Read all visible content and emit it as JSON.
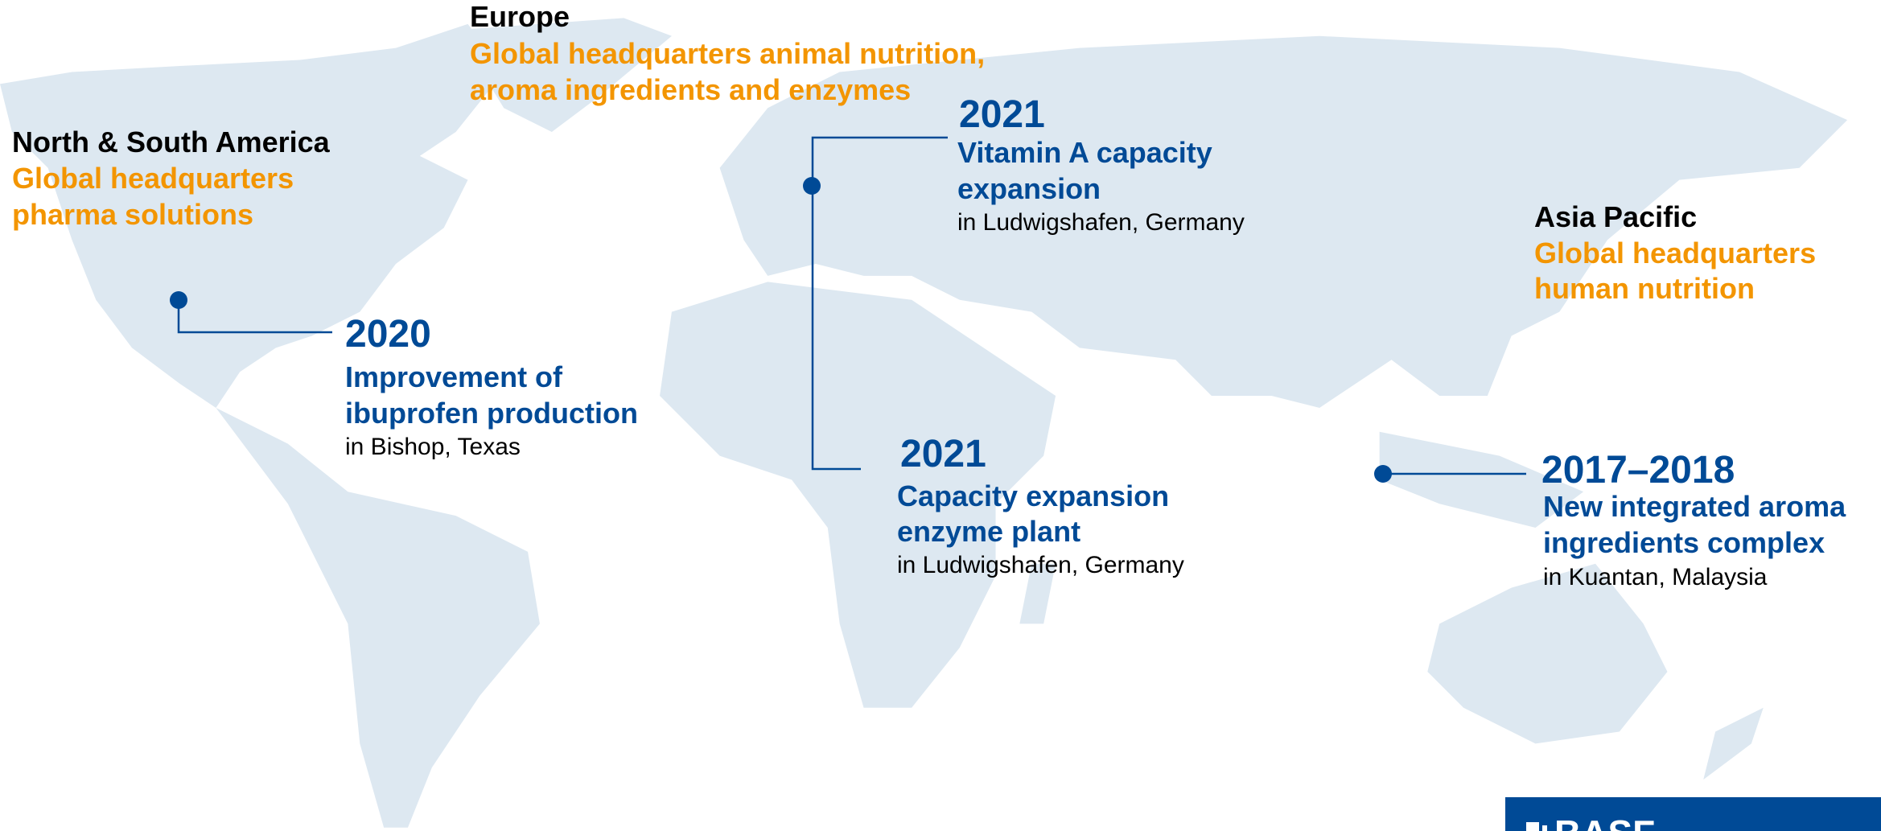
{
  "regions": [
    {
      "name": "Europe",
      "headquarters": [
        "Global headquarters animal nutrition,",
        "aroma ingredients and enzymes"
      ]
    },
    {
      "name": "North & South America",
      "headquarters": [
        "Global headquarters",
        "pharma solutions"
      ]
    },
    {
      "name": "Asia Pacific",
      "headquarters": [
        "Global headquarters",
        "human nutrition"
      ]
    }
  ],
  "milestones": [
    {
      "year": "2020",
      "title": [
        "Improvement of",
        "ibuprofen production"
      ],
      "location": "in Bishop, Texas"
    },
    {
      "year": "2021",
      "title": [
        "Vitamin A capacity",
        "expansion"
      ],
      "location": "in Ludwigshafen, Germany"
    },
    {
      "year": "2021",
      "title": [
        "Capacity expansion",
        "enzyme plant"
      ],
      "location": "in Ludwigshafen, Germany"
    },
    {
      "year": "2017–2018",
      "title": [
        "New integrated aroma",
        "ingredients complex"
      ],
      "location": "in Kuantan, Malaysia"
    }
  ],
  "logo": "BASF"
}
